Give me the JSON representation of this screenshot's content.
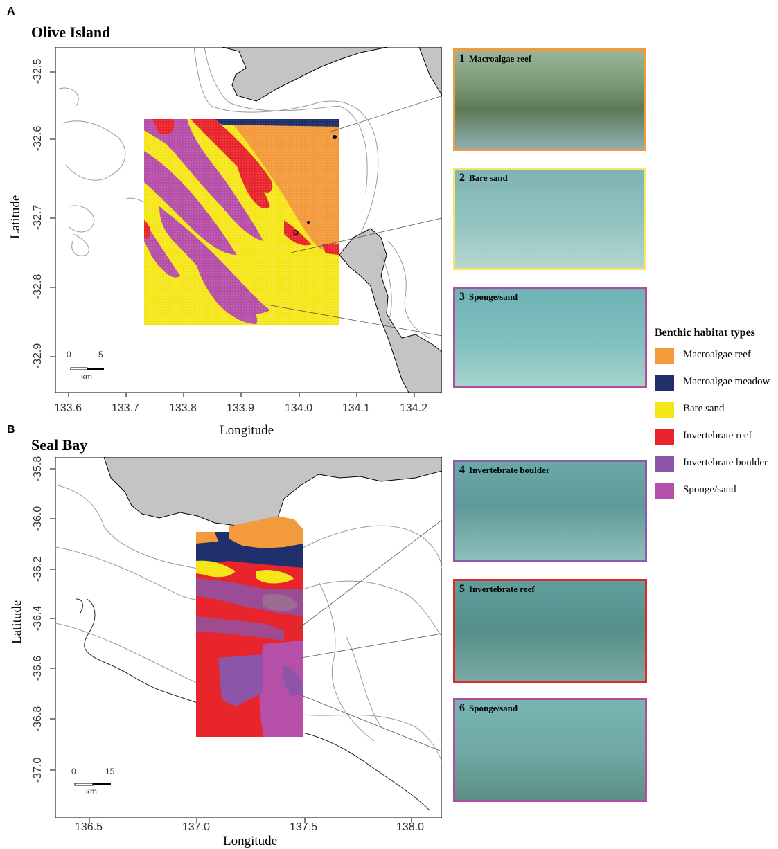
{
  "panels": [
    {
      "letter": "A",
      "title": "Olive Island",
      "x_ticks": [
        "133.6",
        "133.7",
        "133.8",
        "133.9",
        "134.0",
        "134.1",
        "134.2"
      ],
      "y_ticks": [
        "-32.5",
        "-32.6",
        "-32.7",
        "-32.8",
        "-32.9"
      ],
      "xlabel": "Longitude",
      "ylabel": "Latitude",
      "scalebar": {
        "start": "0",
        "end": "5",
        "unit": "km"
      }
    },
    {
      "letter": "B",
      "title": "Seal Bay",
      "x_ticks": [
        "136.5",
        "137.0",
        "137.5",
        "138.0"
      ],
      "y_ticks": [
        "-35.8",
        "-36.0",
        "-36.2",
        "-36.4",
        "-36.6",
        "-36.8",
        "-37.0"
      ],
      "xlabel": "Longitude",
      "ylabel": "Latitude",
      "scalebar": {
        "start": "0",
        "end": "15",
        "unit": "km"
      }
    }
  ],
  "photos": [
    {
      "number": "1",
      "label": "Macroalgae reef",
      "border": "#F39A3C"
    },
    {
      "number": "2",
      "label": "Bare sand",
      "border": "#F5E66A"
    },
    {
      "number": "3",
      "label": "Sponge/sand",
      "border": "#B04DA0"
    },
    {
      "number": "4",
      "label": "Invertebrate boulder",
      "border": "#8C5AA8"
    },
    {
      "number": "5",
      "label": "Invertebrate reef",
      "border": "#E02A2A"
    },
    {
      "number": "6",
      "label": "Sponge/sand",
      "border": "#B04DA0"
    }
  ],
  "legend": {
    "title": "Benthic habitat types",
    "items": [
      {
        "label": "Macroalgae reef",
        "color": "#F39A3C"
      },
      {
        "label": "Macroalgae meadow",
        "color": "#1F2F6B"
      },
      {
        "label": "Bare sand",
        "color": "#F5E61A"
      },
      {
        "label": "Invertebrate reef",
        "color": "#E8242C"
      },
      {
        "label": "Invertebrate boulder",
        "color": "#8C55A8"
      },
      {
        "label": "Sponge/sand",
        "color": "#B64FA8"
      }
    ]
  },
  "colors": {
    "land": "#C4C4C4",
    "contour": "#9A9A9A"
  }
}
